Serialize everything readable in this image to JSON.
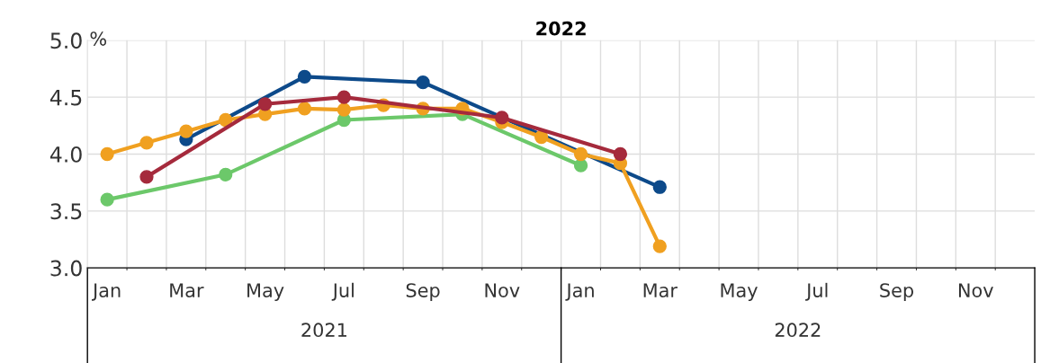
{
  "chart_data": {
    "type": "line",
    "title": "2022",
    "ylabel": "%",
    "categories": [
      "Jan",
      null,
      "Mar",
      null,
      "May",
      null,
      "Jul",
      null,
      "Sep",
      null,
      "Nov",
      null,
      "Jan",
      null,
      "Mar",
      null,
      "May",
      null,
      "Jul",
      null,
      "Sep",
      null,
      "Nov",
      null
    ],
    "series": [
      {
        "color": "#0d4a8a",
        "values": [
          null,
          null,
          4.13,
          null,
          null,
          4.68,
          null,
          null,
          4.63,
          null,
          null,
          null,
          null,
          null,
          3.71,
          null,
          null,
          null,
          null,
          null,
          null,
          null,
          null,
          null
        ]
      },
      {
        "color": "#6cc86a",
        "values": [
          3.6,
          null,
          null,
          3.82,
          null,
          null,
          4.3,
          null,
          null,
          4.35,
          null,
          null,
          3.9,
          null,
          null,
          null,
          null,
          null,
          null,
          null,
          null,
          null,
          null,
          null
        ]
      },
      {
        "color": "#f0a020",
        "values": [
          4.0,
          4.1,
          4.2,
          4.3,
          4.35,
          4.4,
          4.39,
          4.43,
          4.4,
          4.4,
          4.28,
          4.15,
          4.0,
          3.92,
          3.19,
          null,
          null,
          null,
          null,
          null,
          null,
          null,
          null,
          null
        ]
      },
      {
        "color": "#a52a3c",
        "values": [
          null,
          3.8,
          null,
          null,
          4.44,
          null,
          4.5,
          null,
          null,
          null,
          4.32,
          null,
          null,
          4.0,
          null,
          null,
          null,
          null,
          null,
          null,
          null,
          null,
          null,
          null
        ]
      }
    ],
    "ylim": [
      3.0,
      5.0
    ],
    "yticks": [
      {
        "value": 3.0,
        "label": "3.0"
      },
      {
        "value": 3.5,
        "label": "3.5"
      },
      {
        "value": 4.0,
        "label": "4.0"
      },
      {
        "value": 4.5,
        "label": "4.5"
      },
      {
        "value": 5.0,
        "label": "5.0"
      }
    ],
    "annotations": [
      "2021",
      "2022"
    ],
    "grid": true,
    "marker": "circle",
    "line_style": "solid",
    "legend": false
  }
}
